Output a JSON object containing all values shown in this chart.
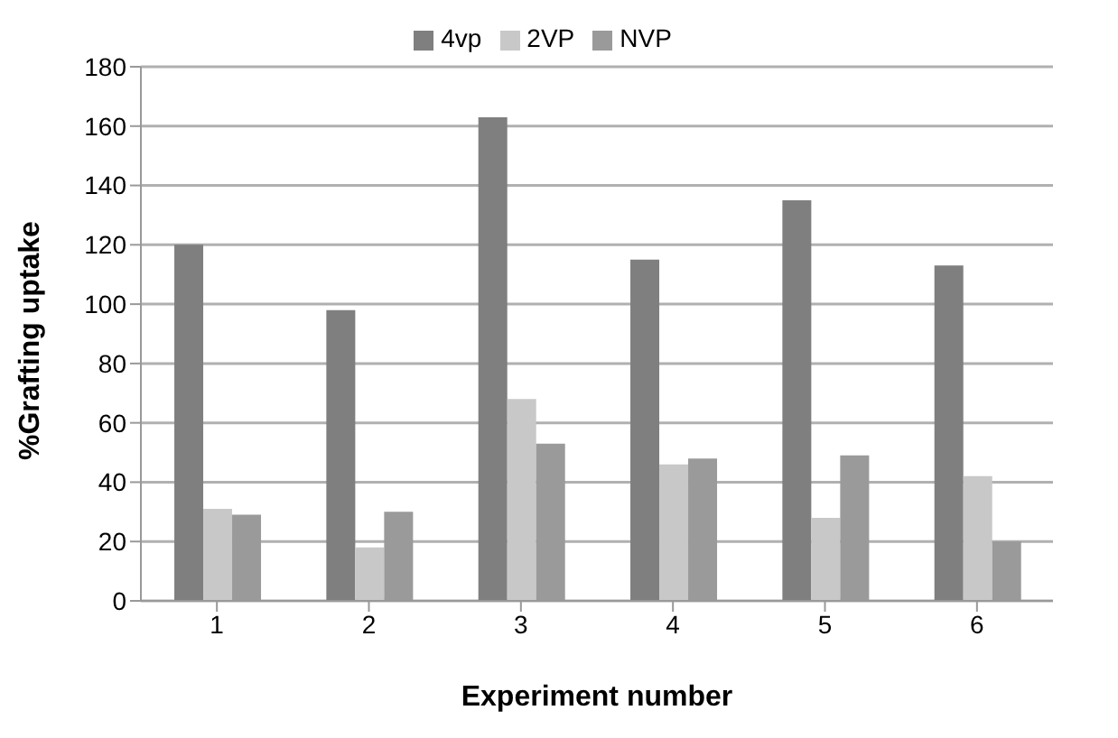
{
  "chart_data": {
    "type": "bar",
    "xlabel": "Experiment number",
    "ylabel": "%Grafting uptake",
    "categories": [
      "1",
      "2",
      "3",
      "4",
      "5",
      "6"
    ],
    "series": [
      {
        "name": "4vp",
        "color": "#7f7f7f",
        "values": [
          120,
          98,
          163,
          115,
          135,
          113
        ]
      },
      {
        "name": "2VP",
        "color": "#c8c8c8",
        "values": [
          31,
          18,
          68,
          46,
          28,
          42
        ]
      },
      {
        "name": "NVP",
        "color": "#9a9a9a",
        "values": [
          29,
          30,
          53,
          48,
          49,
          20
        ]
      }
    ],
    "ylim": [
      0,
      180
    ],
    "yticks": [
      0,
      20,
      40,
      60,
      80,
      100,
      120,
      140,
      160,
      180
    ],
    "grid": "y",
    "legend": "top"
  }
}
